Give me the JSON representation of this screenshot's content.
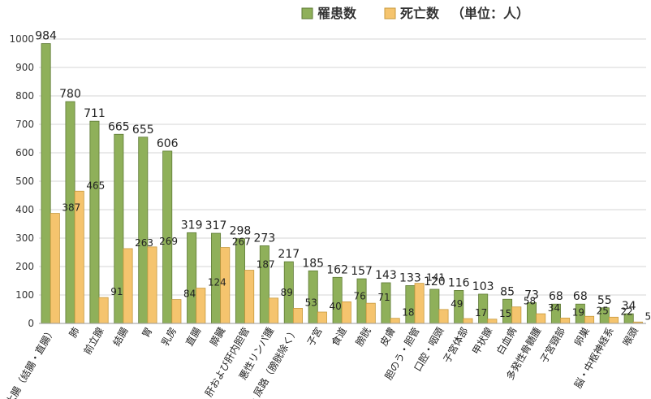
{
  "chart_data": {
    "type": "bar",
    "categories": [
      "大腸（結腸・直腸）",
      "肺",
      "前立腺",
      "結腸",
      "胃",
      "乳房",
      "直腸",
      "膵臓",
      "肝および肝内胆管",
      "悪性リンパ腫",
      "腎・尿路（膀胱除く）",
      "子宮",
      "食道",
      "膀胱",
      "皮膚",
      "胆のう・胆管",
      "口腔・咽頭",
      "子宮体部",
      "甲状腺",
      "白血病",
      "多発性骨髄腫",
      "子宮頸部",
      "卵巣",
      "脳・中枢神経系",
      "喉頭"
    ],
    "series": [
      {
        "name": "罹患数",
        "color": "#8fb05a",
        "values": [
          984,
          780,
          711,
          665,
          655,
          606,
          319,
          317,
          298,
          273,
          217,
          185,
          162,
          157,
          143,
          133,
          120,
          116,
          103,
          85,
          73,
          68,
          68,
          55,
          34
        ]
      },
      {
        "name": "死亡数",
        "color": "#f5c46e",
        "values": [
          387,
          465,
          91,
          263,
          269,
          84,
          124,
          267,
          187,
          89,
          53,
          40,
          76,
          71,
          18,
          141,
          49,
          17,
          15,
          58,
          34,
          19,
          25,
          22,
          5
        ]
      }
    ],
    "legend_unit": "（単位：人）",
    "yticks": [
      "0",
      "100",
      "200",
      "300",
      "400",
      "500",
      "600",
      "700",
      "800",
      "900",
      "1000"
    ],
    "ylim": [
      0,
      1000
    ],
    "grid": true,
    "legend_position": "top-right"
  }
}
